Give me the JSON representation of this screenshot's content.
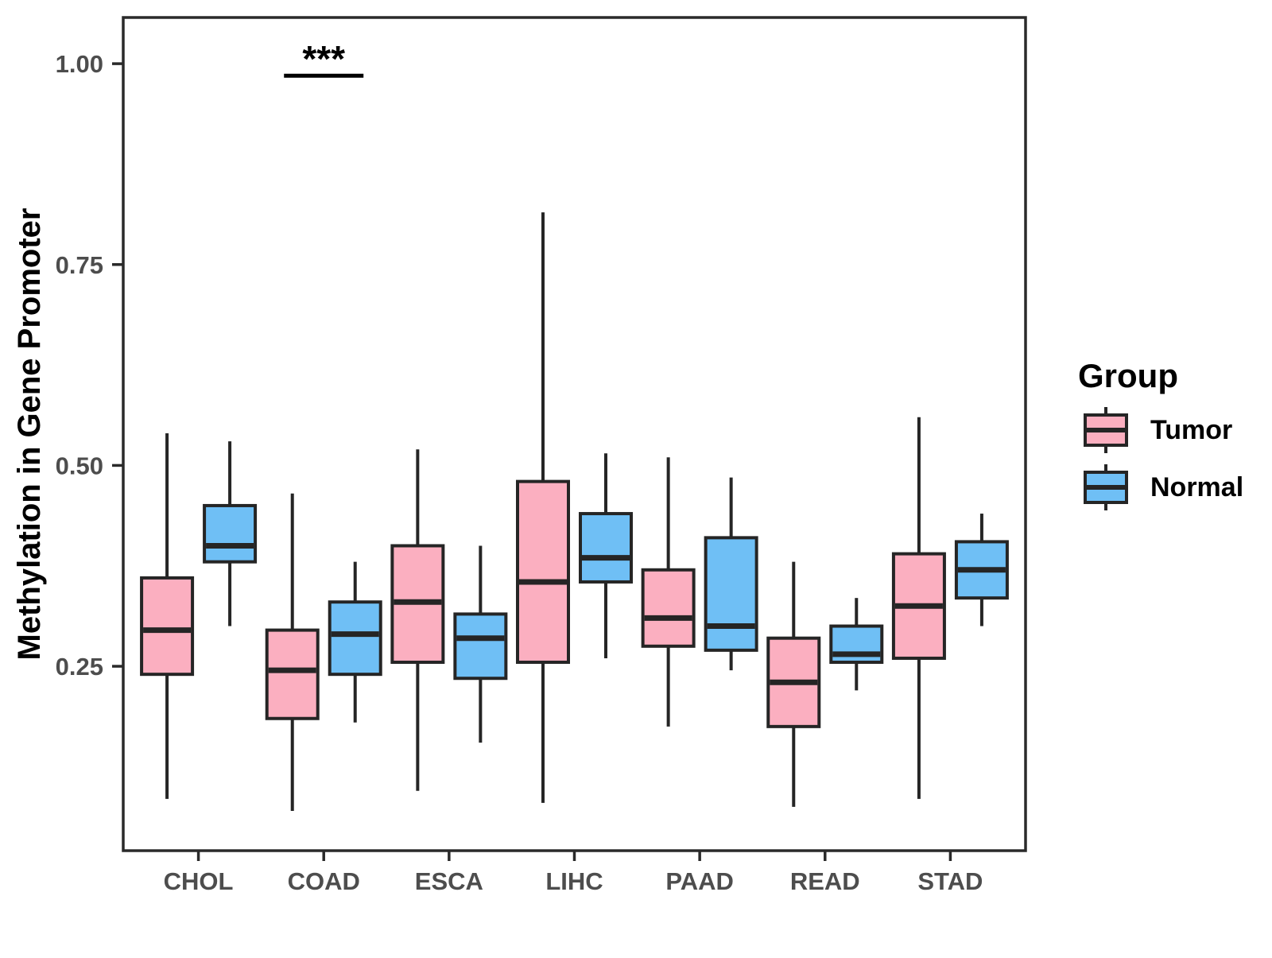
{
  "chart_data": {
    "type": "boxplot",
    "title": "",
    "xlabel": "",
    "ylabel": "Methylation in Gene Promoter",
    "categories": [
      "CHOL",
      "COAD",
      "ESCA",
      "LIHC",
      "PAAD",
      "READ",
      "STAD"
    ],
    "y_axis": {
      "ticks": [
        1.0,
        0.75,
        0.5,
        0.25
      ],
      "tick_labels": [
        "1.00",
        "0.75",
        "0.50",
        "0.25"
      ],
      "range": [
        0.02,
        1.06
      ],
      "grid": false
    },
    "series": [
      {
        "name": "Tumor",
        "color": "#FBAFC0",
        "boxes": [
          {
            "category": "CHOL",
            "min": 0.085,
            "q1": 0.24,
            "median": 0.295,
            "q3": 0.36,
            "max": 0.54
          },
          {
            "category": "COAD",
            "min": 0.07,
            "q1": 0.185,
            "median": 0.245,
            "q3": 0.295,
            "max": 0.465
          },
          {
            "category": "ESCA",
            "min": 0.095,
            "q1": 0.255,
            "median": 0.33,
            "q3": 0.4,
            "max": 0.52
          },
          {
            "category": "LIHC",
            "min": 0.08,
            "q1": 0.255,
            "median": 0.355,
            "q3": 0.48,
            "max": 0.815
          },
          {
            "category": "PAAD",
            "min": 0.175,
            "q1": 0.275,
            "median": 0.31,
            "q3": 0.37,
            "max": 0.51
          },
          {
            "category": "READ",
            "min": 0.075,
            "q1": 0.175,
            "median": 0.23,
            "q3": 0.285,
            "max": 0.38
          },
          {
            "category": "STAD",
            "min": 0.085,
            "q1": 0.26,
            "median": 0.325,
            "q3": 0.39,
            "max": 0.56
          }
        ]
      },
      {
        "name": "Normal",
        "color": "#6FBFF5",
        "boxes": [
          {
            "category": "CHOL",
            "min": 0.3,
            "q1": 0.38,
            "median": 0.4,
            "q3": 0.45,
            "max": 0.53
          },
          {
            "category": "COAD",
            "min": 0.18,
            "q1": 0.24,
            "median": 0.29,
            "q3": 0.33,
            "max": 0.38
          },
          {
            "category": "ESCA",
            "min": 0.155,
            "q1": 0.235,
            "median": 0.285,
            "q3": 0.315,
            "max": 0.4
          },
          {
            "category": "LIHC",
            "min": 0.26,
            "q1": 0.355,
            "median": 0.385,
            "q3": 0.44,
            "max": 0.515
          },
          {
            "category": "PAAD",
            "min": 0.245,
            "q1": 0.27,
            "median": 0.3,
            "q3": 0.41,
            "max": 0.485
          },
          {
            "category": "READ",
            "min": 0.22,
            "q1": 0.255,
            "median": 0.265,
            "q3": 0.3,
            "max": 0.335
          },
          {
            "category": "STAD",
            "min": 0.3,
            "q1": 0.335,
            "median": 0.37,
            "q3": 0.405,
            "max": 0.44
          }
        ]
      }
    ],
    "annotation": {
      "label": "***",
      "category": "COAD",
      "line_y": 0.985,
      "text_y": 1.01
    },
    "legend": {
      "title": "Group",
      "position": "right",
      "entries": [
        {
          "label": "Tumor",
          "color": "#FBAFC0"
        },
        {
          "label": "Normal",
          "color": "#6FBFF5"
        }
      ]
    },
    "styles": {
      "box_stroke": "#252525",
      "axis_line": "#2A2A2A",
      "axis_text": "#4D4D4D",
      "text": "#000000",
      "background": "#FFFFFF"
    }
  }
}
